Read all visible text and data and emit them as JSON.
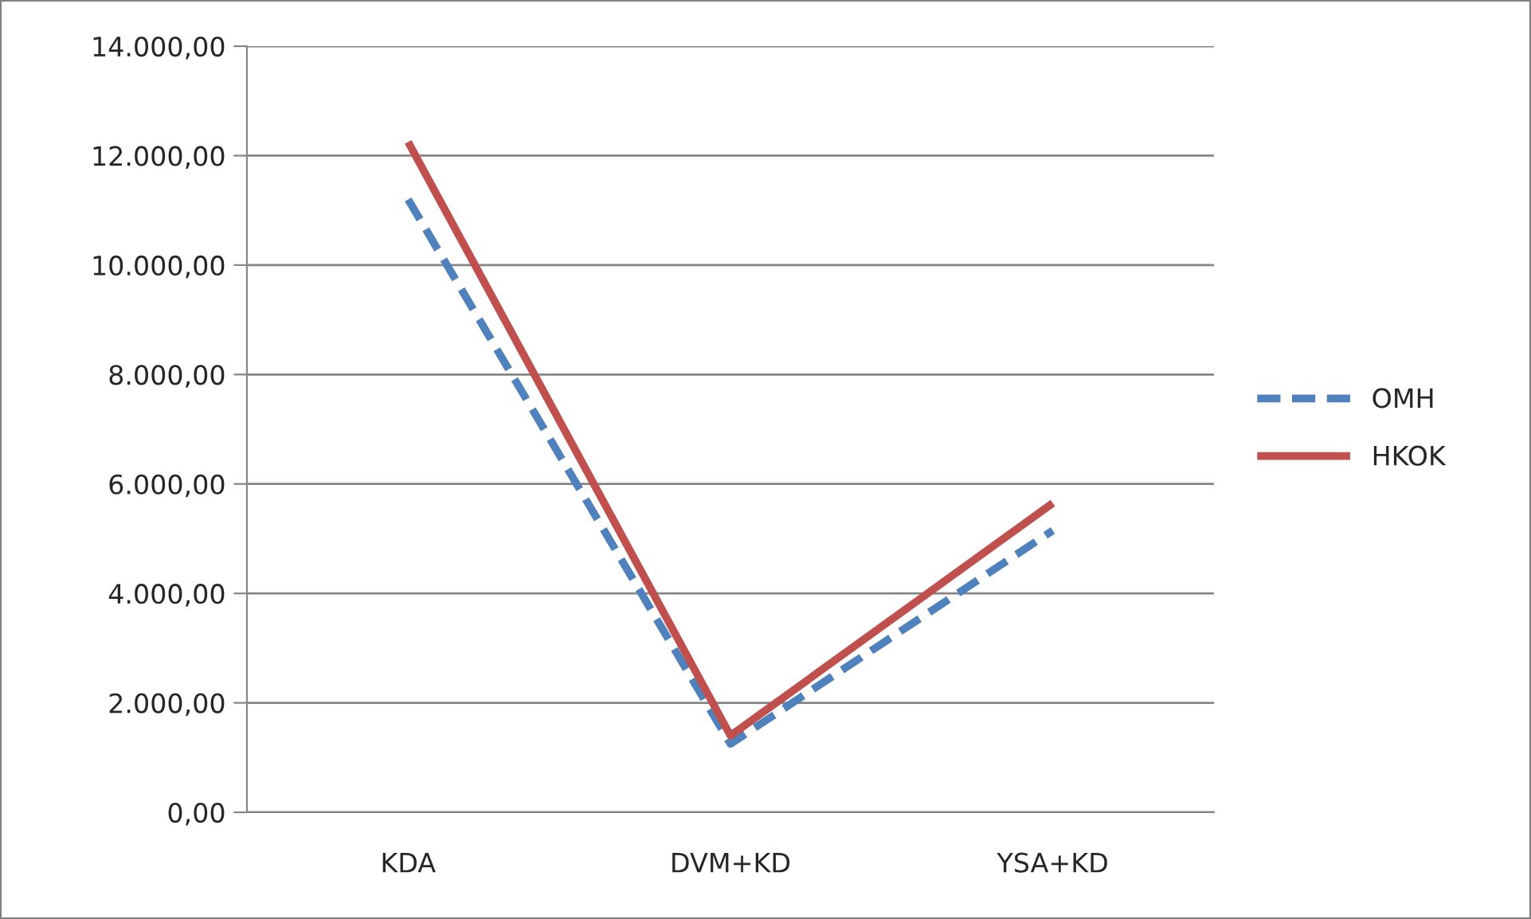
{
  "chart_data": {
    "type": "line",
    "categories": [
      "KDA",
      "DVM+KD",
      "YSA+KD"
    ],
    "series": [
      {
        "name": "OMH",
        "color": "#4f81bd",
        "line_style": "dashed",
        "values": [
          11200,
          1250,
          5150
        ]
      },
      {
        "name": "HKOK",
        "color": "#c0504d",
        "line_style": "solid",
        "values": [
          12250,
          1400,
          5650
        ]
      }
    ],
    "ylim": [
      0,
      14000
    ],
    "yticks": [
      {
        "value": 0,
        "label": "0,00"
      },
      {
        "value": 2000,
        "label": "2.000,00"
      },
      {
        "value": 4000,
        "label": "4.000,00"
      },
      {
        "value": 6000,
        "label": "6.000,00"
      },
      {
        "value": 8000,
        "label": "8.000,00"
      },
      {
        "value": 10000,
        "label": "10.000,00"
      },
      {
        "value": 12000,
        "label": "12.000,00"
      },
      {
        "value": 14000,
        "label": "14.000,00"
      }
    ],
    "grid": "y",
    "legend": "right",
    "marker": "none"
  }
}
